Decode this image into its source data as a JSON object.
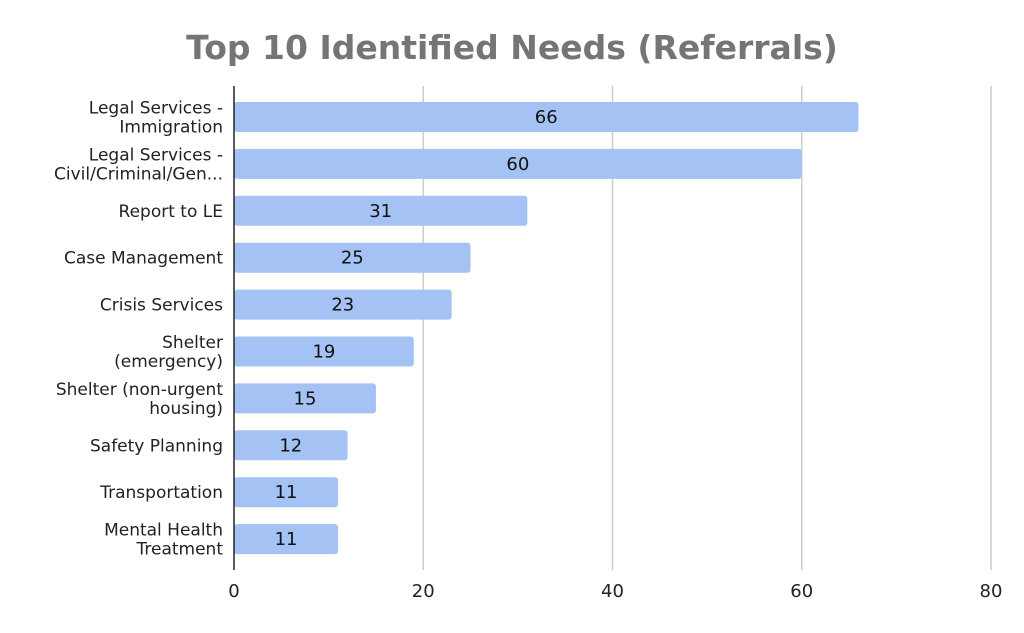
{
  "chart_data": {
    "type": "bar",
    "orientation": "horizontal",
    "title": "Top 10 Identified Needs (Referrals)",
    "xlabel": "",
    "ylabel": "",
    "xlim": [
      0,
      80
    ],
    "x_ticks": [
      0,
      20,
      40,
      60,
      80
    ],
    "grid": true,
    "legend": "none",
    "bar_color": "#a4c2f4",
    "categories": [
      [
        "Legal Services -",
        "Immigration"
      ],
      [
        "Legal Services -",
        "Civil/Criminal/Gen..."
      ],
      [
        "Report to LE"
      ],
      [
        "Case Management"
      ],
      [
        "Crisis Services"
      ],
      [
        "Shelter",
        "(emergency)"
      ],
      [
        "Shelter (non-urgent",
        "housing)"
      ],
      [
        "Safety Planning"
      ],
      [
        "Transportation"
      ],
      [
        "Mental Health",
        "Treatment"
      ]
    ],
    "values": [
      66,
      60,
      31,
      25,
      23,
      19,
      15,
      12,
      11,
      11
    ]
  }
}
